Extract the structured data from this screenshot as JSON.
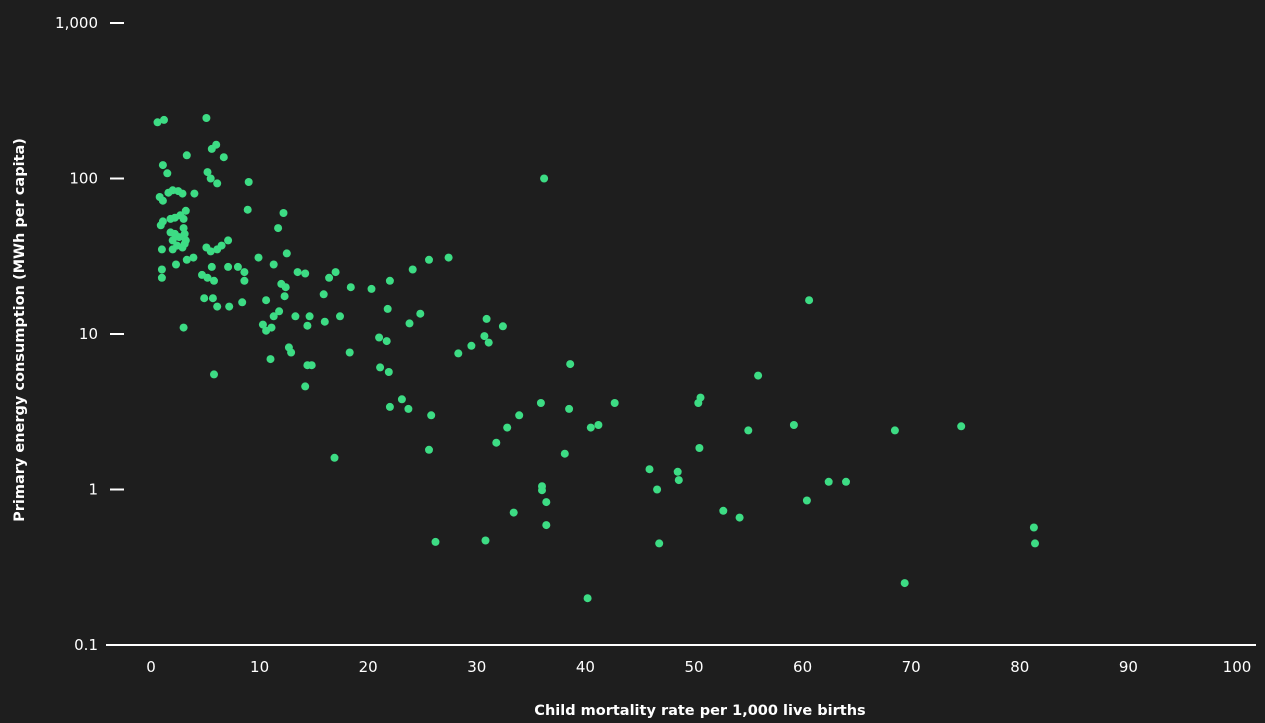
{
  "chart_data": {
    "type": "scatter",
    "title": "",
    "xlabel": "Child mortality rate per 1,000 live births",
    "ylabel": "Primary energy consumption (MWh per capita)",
    "xlim": [
      0,
      100
    ],
    "ylim": [
      0.1,
      1000
    ],
    "yscale": "log",
    "grid": false,
    "x_ticks": [
      0,
      10,
      20,
      30,
      40,
      50,
      60,
      70,
      80,
      90,
      100
    ],
    "x_tick_labels": [
      "0",
      "10",
      "20",
      "30",
      "40",
      "50",
      "60",
      "70",
      "80",
      "90",
      "100"
    ],
    "y_ticks": [
      0.1,
      1,
      10,
      100,
      1000
    ],
    "y_tick_labels": [
      "0.1",
      "1",
      "10",
      "100",
      "1,000"
    ],
    "colors": {
      "background": "#1e1e1e",
      "point": "#3ddc84",
      "axis": "#ffffff",
      "text": "#ffffff"
    },
    "points": [
      [
        0.6,
        230
      ],
      [
        1.2,
        238
      ],
      [
        5.1,
        245
      ],
      [
        1.1,
        122
      ],
      [
        1.5,
        108
      ],
      [
        5.2,
        110
      ],
      [
        5.5,
        100
      ],
      [
        5.6,
        155
      ],
      [
        6.0,
        165
      ],
      [
        6.1,
        93
      ],
      [
        6.7,
        137
      ],
      [
        3.3,
        141
      ],
      [
        9.0,
        95
      ],
      [
        0.8,
        76
      ],
      [
        1.1,
        72
      ],
      [
        1.6,
        81
      ],
      [
        2.0,
        84
      ],
      [
        2.5,
        83
      ],
      [
        2.9,
        80
      ],
      [
        4.0,
        80
      ],
      [
        0.9,
        50
      ],
      [
        1.1,
        53
      ],
      [
        1.8,
        55
      ],
      [
        2.2,
        56
      ],
      [
        2.7,
        58
      ],
      [
        3.2,
        62
      ],
      [
        3.0,
        55
      ],
      [
        1.8,
        45
      ],
      [
        2.2,
        44
      ],
      [
        2.6,
        42
      ],
      [
        2.0,
        40
      ],
      [
        2.4,
        37
      ],
      [
        2.9,
        36
      ],
      [
        3.0,
        48
      ],
      [
        3.1,
        44
      ],
      [
        3.2,
        40
      ],
      [
        3.1,
        38
      ],
      [
        2.0,
        35
      ],
      [
        1.0,
        35
      ],
      [
        2.3,
        28
      ],
      [
        3.3,
        30
      ],
      [
        3.9,
        31
      ],
      [
        5.1,
        36
      ],
      [
        5.5,
        34
      ],
      [
        6.1,
        35
      ],
      [
        6.5,
        37
      ],
      [
        7.1,
        40
      ],
      [
        1.0,
        26
      ],
      [
        1.0,
        23
      ],
      [
        4.7,
        24
      ],
      [
        5.6,
        27
      ],
      [
        5.2,
        23
      ],
      [
        5.8,
        22
      ],
      [
        7.1,
        27
      ],
      [
        8.0,
        27
      ],
      [
        8.6,
        25
      ],
      [
        8.6,
        22
      ],
      [
        4.9,
        17
      ],
      [
        5.7,
        17
      ],
      [
        6.1,
        15
      ],
      [
        7.2,
        15
      ],
      [
        8.4,
        16
      ],
      [
        3.0,
        11
      ],
      [
        5.8,
        5.5
      ],
      [
        8.9,
        63
      ],
      [
        9.9,
        31
      ],
      [
        11.3,
        28
      ],
      [
        11.7,
        48
      ],
      [
        12.2,
        60
      ],
      [
        12.5,
        33
      ],
      [
        12.0,
        21
      ],
      [
        12.4,
        20
      ],
      [
        12.3,
        17.5
      ],
      [
        10.6,
        16.5
      ],
      [
        11.3,
        13
      ],
      [
        11.8,
        14
      ],
      [
        11.1,
        11
      ],
      [
        10.3,
        11.5
      ],
      [
        10.6,
        10.5
      ],
      [
        12.7,
        8.2
      ],
      [
        12.9,
        7.6
      ],
      [
        11.0,
        6.9
      ],
      [
        13.3,
        13
      ],
      [
        14.6,
        13
      ],
      [
        13.5,
        25
      ],
      [
        14.2,
        24.5
      ],
      [
        15.9,
        18
      ],
      [
        16.4,
        23
      ],
      [
        17.0,
        25
      ],
      [
        16.0,
        12
      ],
      [
        17.4,
        13
      ],
      [
        14.4,
        11.3
      ],
      [
        14.4,
        6.3
      ],
      [
        14.8,
        6.3
      ],
      [
        14.2,
        4.6
      ],
      [
        18.4,
        20
      ],
      [
        18.3,
        7.6
      ],
      [
        16.9,
        1.6
      ],
      [
        20.3,
        19.5
      ],
      [
        22.0,
        22
      ],
      [
        21.8,
        14.5
      ],
      [
        21.0,
        9.5
      ],
      [
        21.7,
        9.0
      ],
      [
        21.1,
        6.1
      ],
      [
        21.9,
        5.7
      ],
      [
        22.0,
        3.4
      ],
      [
        23.1,
        3.8
      ],
      [
        23.7,
        3.3
      ],
      [
        23.8,
        11.7
      ],
      [
        24.1,
        26
      ],
      [
        24.8,
        13.5
      ],
      [
        25.6,
        30
      ],
      [
        27.4,
        31
      ],
      [
        25.8,
        3.0
      ],
      [
        25.6,
        1.8
      ],
      [
        26.2,
        0.46
      ],
      [
        28.3,
        7.5
      ],
      [
        29.5,
        8.4
      ],
      [
        30.9,
        12.5
      ],
      [
        30.7,
        9.7
      ],
      [
        31.1,
        8.8
      ],
      [
        32.4,
        11.2
      ],
      [
        31.8,
        2.0
      ],
      [
        32.8,
        2.5
      ],
      [
        33.9,
        3.0
      ],
      [
        33.4,
        0.71
      ],
      [
        30.8,
        0.47
      ],
      [
        36.2,
        100
      ],
      [
        35.9,
        3.6
      ],
      [
        38.6,
        6.4
      ],
      [
        38.5,
        3.3
      ],
      [
        38.1,
        1.7
      ],
      [
        36.0,
        1.05
      ],
      [
        36.0,
        0.99
      ],
      [
        36.4,
        0.83
      ],
      [
        36.4,
        0.59
      ],
      [
        40.2,
        0.2
      ],
      [
        40.5,
        2.5
      ],
      [
        41.2,
        2.6
      ],
      [
        42.7,
        3.6
      ],
      [
        45.9,
        1.35
      ],
      [
        46.6,
        1.0
      ],
      [
        48.5,
        1.3
      ],
      [
        48.6,
        1.15
      ],
      [
        46.8,
        0.45
      ],
      [
        50.4,
        3.6
      ],
      [
        50.6,
        3.9
      ],
      [
        50.5,
        1.85
      ],
      [
        52.7,
        0.73
      ],
      [
        54.2,
        0.66
      ],
      [
        55.0,
        2.4
      ],
      [
        55.9,
        5.4
      ],
      [
        59.2,
        2.6
      ],
      [
        60.6,
        16.5
      ],
      [
        60.4,
        0.85
      ],
      [
        62.4,
        1.12
      ],
      [
        64.0,
        1.12
      ],
      [
        68.5,
        2.4
      ],
      [
        69.4,
        0.25
      ],
      [
        74.6,
        2.55
      ],
      [
        81.3,
        0.57
      ],
      [
        81.4,
        0.45
      ]
    ]
  }
}
